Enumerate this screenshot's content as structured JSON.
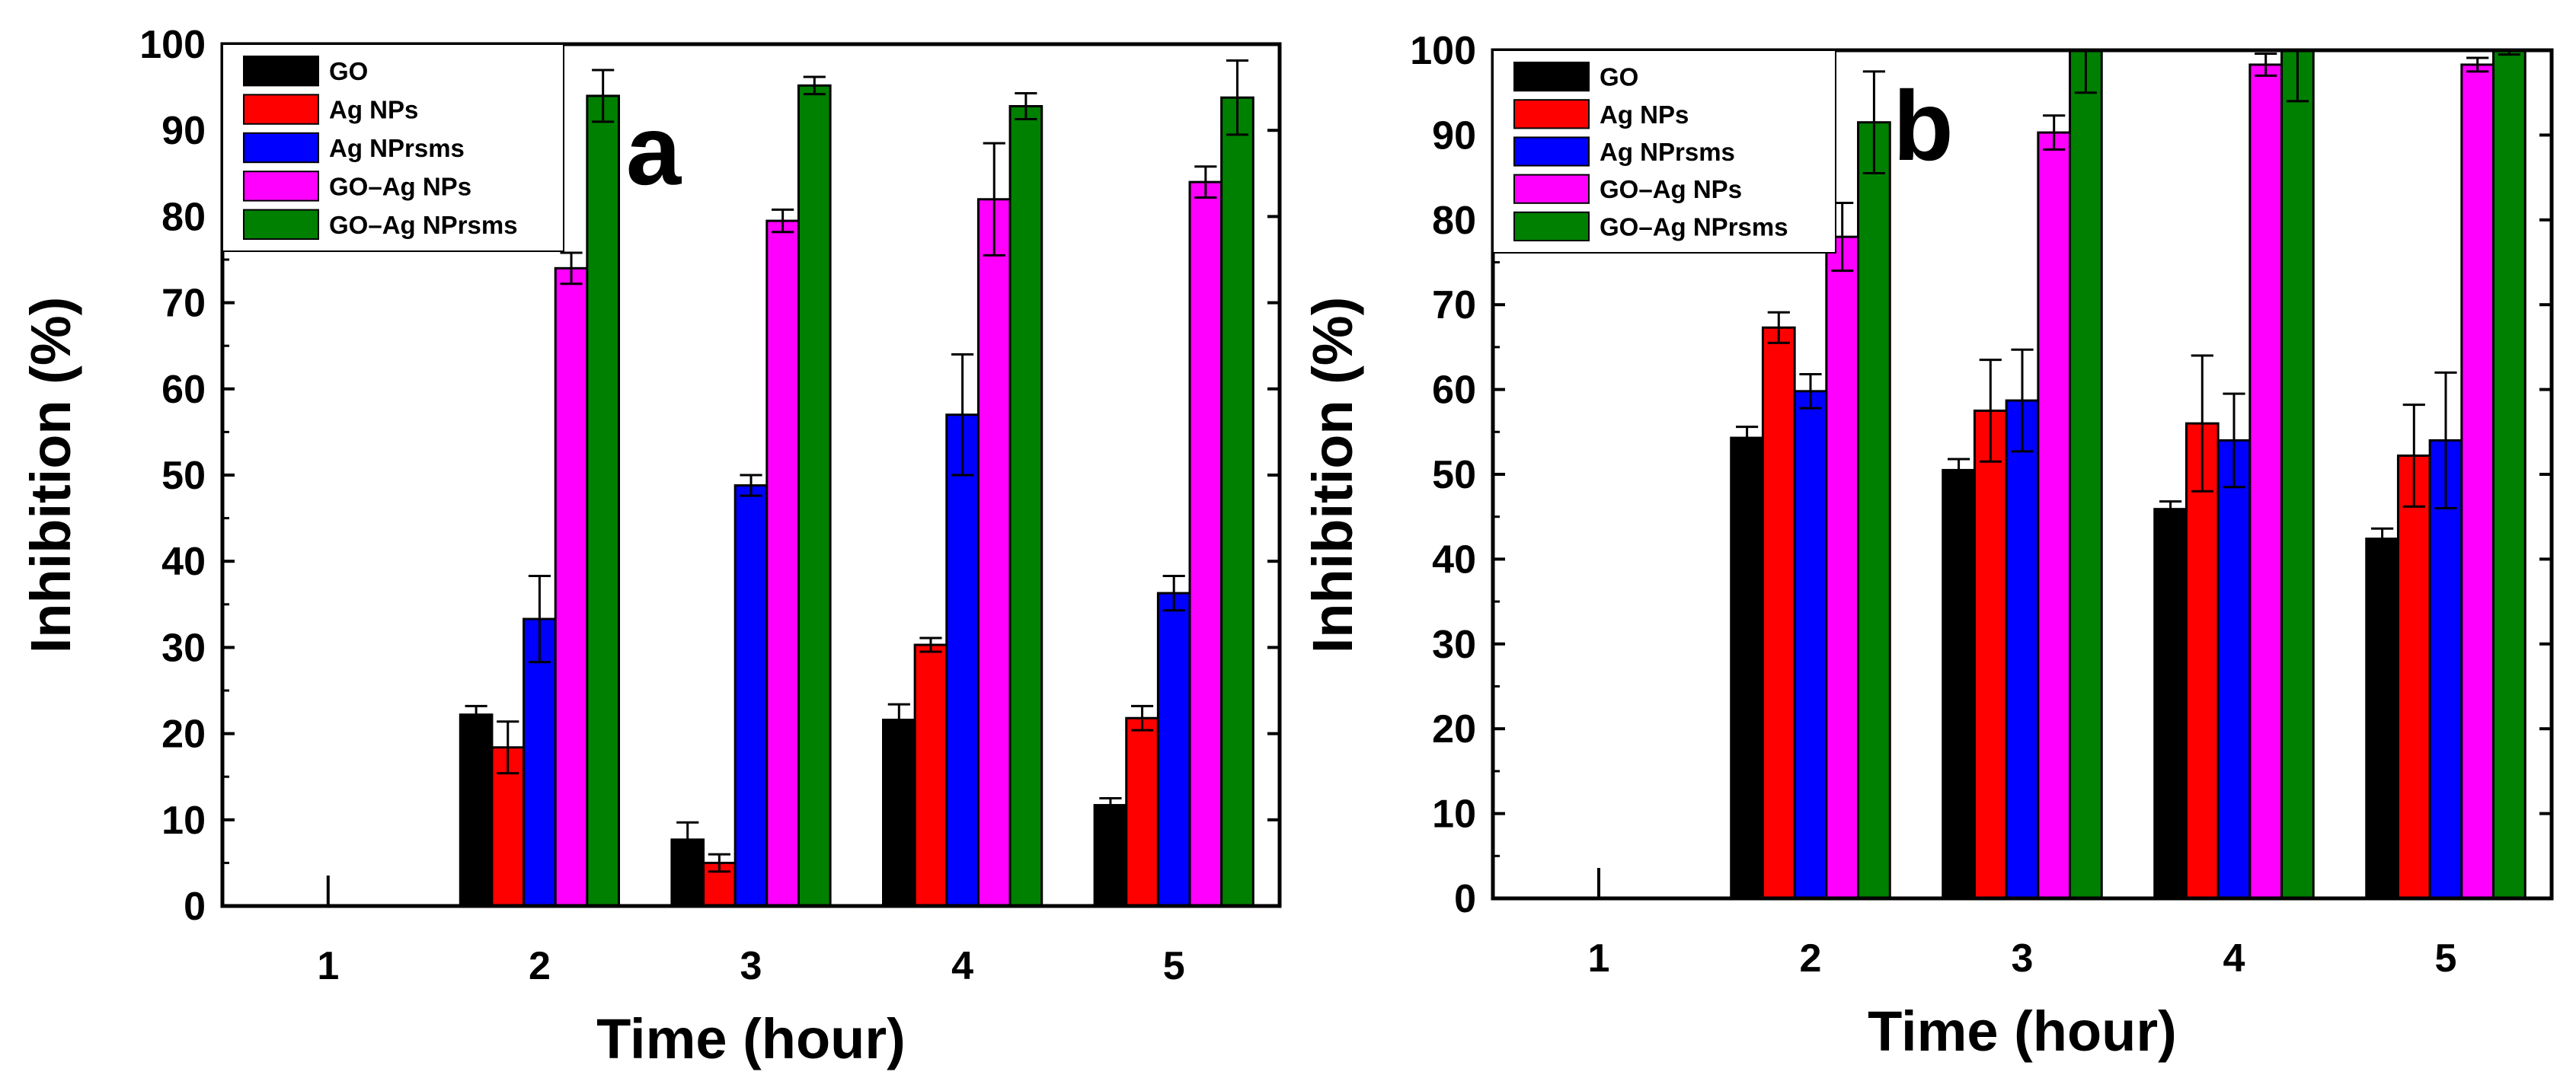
{
  "chart_data": [
    {
      "type": "bar",
      "panel_label": "a",
      "xlabel": "Time (hour)",
      "ylabel": "Inhibition (%)",
      "ylim": [
        0,
        100
      ],
      "yticks": [
        0,
        10,
        20,
        30,
        40,
        50,
        60,
        70,
        80,
        90,
        100
      ],
      "categories": [
        "1",
        "2",
        "3",
        "4",
        "5"
      ],
      "legend_position": "top-left",
      "series": [
        {
          "name": "GO",
          "color": "#000000",
          "values": [
            0,
            22.2,
            7.7,
            21.6,
            11.7
          ],
          "errors": [
            0,
            1.0,
            2.0,
            1.8,
            0.8
          ]
        },
        {
          "name": "Ag NPs",
          "color": "#ff0000",
          "values": [
            0,
            18.4,
            5.0,
            30.3,
            21.8
          ],
          "errors": [
            0,
            3.0,
            1.0,
            0.8,
            1.4
          ]
        },
        {
          "name": "Ag NPrsms",
          "color": "#0000ff",
          "values": [
            0,
            33.3,
            48.8,
            57.0,
            36.3
          ],
          "errors": [
            0,
            5.0,
            1.2,
            7.0,
            2.0
          ]
        },
        {
          "name": "GO–Ag NPs",
          "color": "#ff00ff",
          "values": [
            0,
            74.0,
            79.5,
            82.0,
            84.0
          ],
          "errors": [
            0,
            1.8,
            1.3,
            6.5,
            1.8
          ]
        },
        {
          "name": "GO–Ag NPrsms",
          "color": "#008000",
          "values": [
            0,
            94.0,
            95.2,
            92.8,
            93.8
          ],
          "errors": [
            0,
            3.0,
            1.0,
            1.5,
            4.3
          ]
        }
      ]
    },
    {
      "type": "bar",
      "panel_label": "b",
      "xlabel": "Time (hour)",
      "ylabel": "Inhibition (%)",
      "ylim": [
        0,
        100
      ],
      "yticks": [
        0,
        10,
        20,
        30,
        40,
        50,
        60,
        70,
        80,
        90,
        100
      ],
      "categories": [
        "1",
        "2",
        "3",
        "4",
        "5"
      ],
      "legend_position": "top-left",
      "series": [
        {
          "name": "GO",
          "color": "#000000",
          "values": [
            0,
            54.3,
            50.5,
            45.9,
            42.4
          ],
          "errors": [
            0,
            1.3,
            1.3,
            0.9,
            1.2
          ]
        },
        {
          "name": "Ag NPs",
          "color": "#ff0000",
          "values": [
            0,
            67.3,
            57.5,
            56.0,
            52.2
          ],
          "errors": [
            0,
            1.8,
            6.0,
            8.0,
            6.0
          ]
        },
        {
          "name": "Ag NPrsms",
          "color": "#0000ff",
          "values": [
            0,
            59.8,
            58.7,
            54.0,
            54.0
          ],
          "errors": [
            0,
            2.0,
            6.0,
            5.5,
            8.0
          ]
        },
        {
          "name": "GO–Ag NPs",
          "color": "#ff00ff",
          "values": [
            0,
            78.0,
            90.3,
            98.3,
            98.3
          ],
          "errors": [
            0,
            4.0,
            2.0,
            1.3,
            0.8
          ]
        },
        {
          "name": "GO–Ag NPrsms",
          "color": "#008000",
          "values": [
            0,
            91.5,
            100,
            100,
            100
          ],
          "errors": [
            0,
            6.0,
            5.0,
            6.0,
            0.5
          ]
        }
      ]
    }
  ]
}
